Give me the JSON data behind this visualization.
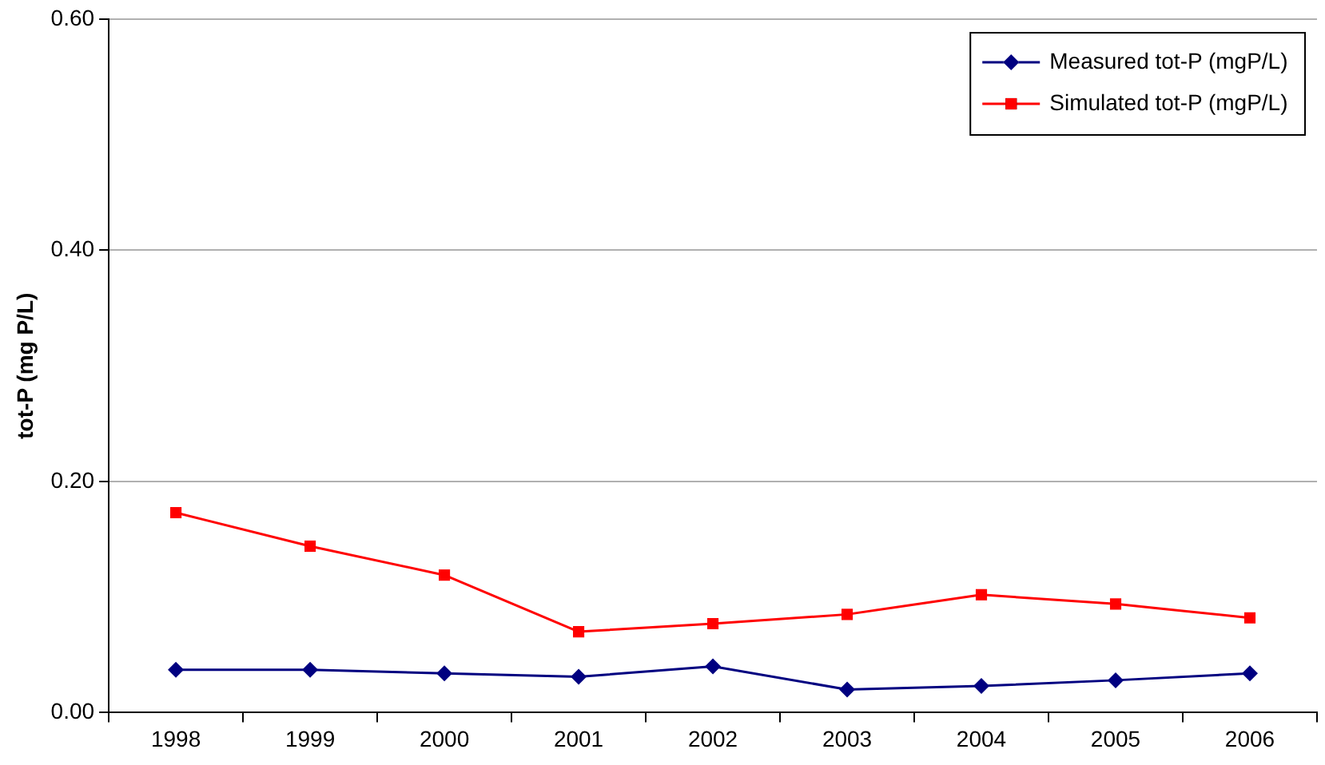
{
  "chart_data": {
    "type": "line",
    "ylabel": "tot-P (mg P/L)",
    "categories": [
      "1998",
      "1999",
      "2000",
      "2001",
      "2002",
      "2003",
      "2004",
      "2005",
      "2006"
    ],
    "series": [
      {
        "name": "Measured tot-P (mgP/L)",
        "color": "#000080",
        "marker": "diamond",
        "values": [
          0.037,
          0.037,
          0.034,
          0.031,
          0.04,
          0.02,
          0.023,
          0.028,
          0.034
        ]
      },
      {
        "name": "Simulated tot-P (mgP/L)",
        "color": "#ff0000",
        "marker": "square",
        "values": [
          0.173,
          0.144,
          0.119,
          0.07,
          0.077,
          0.085,
          0.102,
          0.094,
          0.082
        ]
      }
    ],
    "ylim": [
      0,
      0.6
    ],
    "yticks": [
      {
        "value": 0,
        "label": "0.00"
      },
      {
        "value": 0.2,
        "label": "0.20"
      },
      {
        "value": 0.4,
        "label": "0.40"
      },
      {
        "value": 0.6,
        "label": "0.60"
      }
    ],
    "grid": "y",
    "legend": "top right",
    "line_style": "solid"
  }
}
